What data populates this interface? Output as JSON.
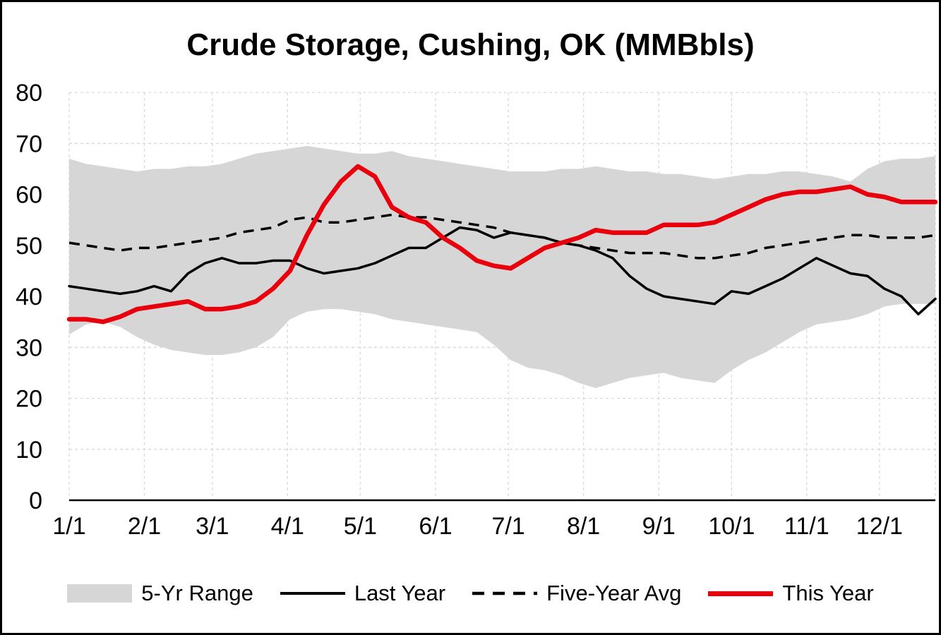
{
  "title": "Crude Storage, Cushing, OK (MMBbls)",
  "colors": {
    "this_year": "#e8000d",
    "last_year": "#000000",
    "five_year_avg": "#000000",
    "range_fill": "#d6d6d6",
    "grid": "#d9d9d9",
    "axis": "#000000",
    "text": "#000000"
  },
  "chart_data": {
    "type": "line",
    "title": "Crude Storage, Cushing, OK (MMBbls)",
    "xlabel": "",
    "ylabel": "",
    "ylim": [
      0,
      80
    ],
    "y_ticks": [
      0,
      10,
      20,
      30,
      40,
      50,
      60,
      70,
      80
    ],
    "x_tick_labels": [
      "1/1",
      "2/1",
      "3/1",
      "4/1",
      "5/1",
      "6/1",
      "7/1",
      "8/1",
      "9/1",
      "10/1",
      "11/1",
      "12/1"
    ],
    "x_tick_days": [
      0,
      31,
      59,
      90,
      120,
      151,
      181,
      212,
      243,
      273,
      304,
      334
    ],
    "x_sampling": "weekly",
    "x_step_days": 7,
    "grid": "dashed",
    "legend_position": "bottom",
    "legend": [
      "5-Yr Range",
      "Last Year",
      "Five-Year Avg",
      "This Year"
    ],
    "series": [
      {
        "name": "5-Yr Range",
        "type": "band",
        "color": "#d6d6d6",
        "upper": [
          67,
          66,
          65.5,
          65,
          64.5,
          65,
          65,
          65.5,
          65.5,
          66,
          67,
          68,
          68.5,
          69,
          69.5,
          69,
          68.5,
          68,
          68,
          68.5,
          67.5,
          67,
          66.5,
          66,
          65.5,
          65,
          64.5,
          64.5,
          64.5,
          65,
          65,
          65.5,
          65,
          64.5,
          64.5,
          64,
          64,
          63.5,
          63,
          63.5,
          64,
          64,
          64.5,
          64.5,
          64,
          63.5,
          62.5,
          65,
          66.5,
          67,
          67,
          67.5
        ],
        "lower": [
          32.5,
          34.5,
          35,
          34,
          32,
          30.5,
          29.5,
          29,
          28.5,
          28.5,
          29,
          30,
          32,
          35.5,
          37,
          37.5,
          37.5,
          37,
          36.5,
          35.5,
          35,
          34.5,
          34,
          33.5,
          33,
          30.5,
          27.5,
          26,
          25.5,
          24.5,
          23,
          22,
          23,
          24,
          24.5,
          25,
          24,
          23.5,
          23,
          25.5,
          27.5,
          29,
          31,
          33,
          34.5,
          35,
          35.5,
          36.5,
          38,
          38.5,
          38.5,
          38.5
        ]
      },
      {
        "name": "Last Year",
        "type": "line",
        "style": "solid",
        "color": "#000000",
        "values": [
          42,
          41.5,
          41,
          40.5,
          41,
          42,
          41,
          44.5,
          46.5,
          47.5,
          46.5,
          46.5,
          47,
          47,
          45.5,
          44.5,
          45,
          45.5,
          46.5,
          48,
          49.5,
          49.5,
          51.5,
          53.5,
          53,
          51.5,
          52.5,
          52,
          51.5,
          50.5,
          50,
          49,
          47.5,
          44,
          41.5,
          40,
          39.5,
          39,
          38.5,
          41,
          40.5,
          42,
          43.5,
          45.5,
          47.5,
          46,
          44.5,
          44,
          41.5,
          40,
          36.5,
          39.5
        ]
      },
      {
        "name": "Five-Year Avg",
        "type": "line",
        "style": "dashed",
        "color": "#000000",
        "values": [
          50.5,
          50,
          49.5,
          49,
          49.5,
          49.5,
          50,
          50.5,
          51,
          51.5,
          52.5,
          53,
          53.5,
          55,
          55.5,
          54.5,
          54.5,
          55,
          55.5,
          56,
          55.5,
          55.5,
          55,
          54.5,
          54,
          53.5,
          52.5,
          52,
          51.5,
          50.5,
          50,
          49.5,
          49,
          48.5,
          48.5,
          48.5,
          48,
          47.5,
          47.5,
          48,
          48.5,
          49.5,
          50,
          50.5,
          51,
          51.5,
          52,
          52,
          51.5,
          51.5,
          51.5,
          52
        ]
      },
      {
        "name": "This Year",
        "type": "line",
        "style": "solid",
        "color": "#e8000d",
        "values": [
          35.5,
          35.5,
          35,
          36,
          37.5,
          38,
          38.5,
          39,
          37.5,
          37.5,
          38,
          39,
          41.5,
          45,
          52,
          58,
          62.5,
          65.5,
          63.5,
          57.5,
          55.5,
          54.5,
          51.5,
          49.5,
          47,
          46,
          45.5,
          47.5,
          49.5,
          50.5,
          51.5,
          53,
          52.5,
          52.5,
          52.5,
          54,
          54,
          54,
          54.5,
          56,
          57.5,
          59,
          60,
          60.5,
          60.5,
          61,
          61.5,
          60,
          59.5,
          58.5,
          58.5,
          58.5
        ]
      }
    ]
  }
}
